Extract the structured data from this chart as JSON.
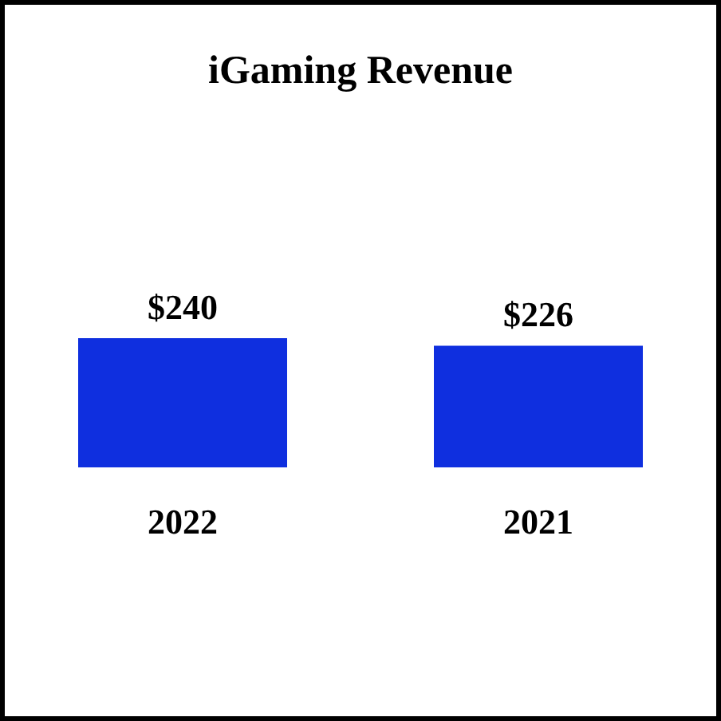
{
  "chart_data": {
    "type": "bar",
    "title": "iGaming Revenue",
    "categories": [
      "2022",
      "2021"
    ],
    "values": [
      240,
      226
    ],
    "value_labels": [
      "$240",
      "$226"
    ],
    "color": "#0f2fdf"
  }
}
